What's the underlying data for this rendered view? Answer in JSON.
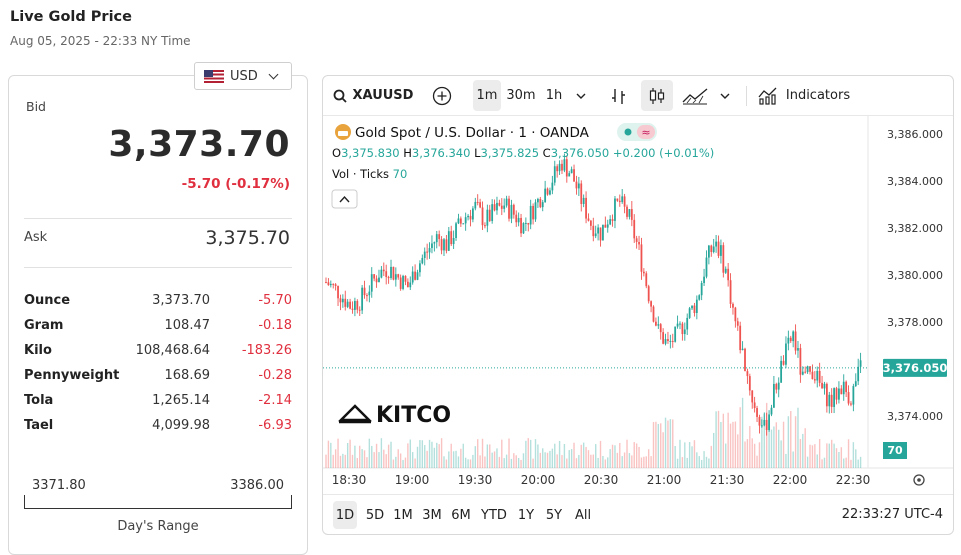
{
  "page": {
    "title": "Live Gold Price",
    "subtitle": "Aug 05, 2025 - 22:33 NY Time"
  },
  "currency": {
    "label": "USD",
    "icon": "us-flag-icon"
  },
  "bid": {
    "label": "Bid",
    "value": "3,373.70",
    "change": "-5.70 (-0.17%)"
  },
  "ask": {
    "label": "Ask",
    "value": "3,375.70"
  },
  "units": [
    {
      "name": "Ounce",
      "price": "3,373.70",
      "change": "-5.70"
    },
    {
      "name": "Gram",
      "price": "108.47",
      "change": "-0.18"
    },
    {
      "name": "Kilo",
      "price": "108,468.64",
      "change": "-183.26"
    },
    {
      "name": "Pennyweight",
      "price": "168.69",
      "change": "-0.28"
    },
    {
      "name": "Tola",
      "price": "1,265.14",
      "change": "-2.14"
    },
    {
      "name": "Tael",
      "price": "4,099.98",
      "change": "-6.93"
    }
  ],
  "day_range": {
    "low": "3371.80",
    "high": "3386.00",
    "label": "Day's Range"
  },
  "toolbar": {
    "symbol": "XAUUSD",
    "intervals": [
      "1m",
      "30m",
      "1h"
    ],
    "active_interval": "1m",
    "indicators_label": "Indicators"
  },
  "chart": {
    "title": "Gold Spot / U.S. Dollar · 1 · OANDA",
    "ohlc": {
      "o_label": "O",
      "o": "3,375.830",
      "h_label": "H",
      "h": "3,376.340",
      "l_label": "L",
      "l": "3,375.825",
      "c_label": "C",
      "c": "3,376.050",
      "change": "+0.200 (+0.01%)"
    },
    "vol_label": "Vol · Ticks",
    "vol_value": "70",
    "watermark": "KITCO",
    "last_price_tag": "3,376.050",
    "volume_tag": "70",
    "colors": {
      "up": "#26a69a",
      "down": "#ef5350",
      "tag": "#26a69a"
    }
  },
  "chart_data": {
    "type": "candlestick",
    "y_ticks": [
      "3,386.000",
      "3,384.000",
      "3,382.000",
      "3,380.000",
      "3,378.000",
      "3,374.000"
    ],
    "ylim": [
      3372.2,
      3387.1
    ],
    "x_ticks": [
      "18:30",
      "19:00",
      "19:30",
      "20:00",
      "20:30",
      "21:00",
      "21:30",
      "22:00",
      "22:30"
    ],
    "close_path": [
      [
        0,
        3379.7
      ],
      [
        5,
        3379.3
      ],
      [
        10,
        3378.7
      ],
      [
        14,
        3378.9
      ],
      [
        18,
        3379.5
      ],
      [
        22,
        3380.1
      ],
      [
        26,
        3380.3
      ],
      [
        30,
        3379.9
      ],
      [
        34,
        3379.5
      ],
      [
        38,
        3380.4
      ],
      [
        42,
        3381.0
      ],
      [
        46,
        3381.6
      ],
      [
        50,
        3381.3
      ],
      [
        54,
        3381.9
      ],
      [
        58,
        3382.5
      ],
      [
        62,
        3382.9
      ],
      [
        66,
        3382.3
      ],
      [
        70,
        3382.7
      ],
      [
        74,
        3383.0
      ],
      [
        78,
        3382.6
      ],
      [
        82,
        3382.1
      ],
      [
        86,
        3382.8
      ],
      [
        90,
        3383.5
      ],
      [
        94,
        3384.1
      ],
      [
        98,
        3384.8
      ],
      [
        102,
        3384.3
      ],
      [
        106,
        3383.2
      ],
      [
        110,
        3382.2
      ],
      [
        114,
        3381.8
      ],
      [
        118,
        3382.6
      ],
      [
        122,
        3383.1
      ],
      [
        126,
        3382.4
      ],
      [
        130,
        3381.0
      ],
      [
        134,
        3379.2
      ],
      [
        138,
        3377.6
      ],
      [
        142,
        3377.0
      ],
      [
        146,
        3377.5
      ],
      [
        150,
        3378.2
      ],
      [
        154,
        3378.9
      ],
      [
        158,
        3380.6
      ],
      [
        162,
        3381.5
      ],
      [
        166,
        3380.2
      ],
      [
        170,
        3378.0
      ],
      [
        174,
        3376.2
      ],
      [
        178,
        3374.3
      ],
      [
        182,
        3373.4
      ],
      [
        186,
        3375.0
      ],
      [
        190,
        3376.4
      ],
      [
        194,
        3377.5
      ],
      [
        198,
        3375.5
      ],
      [
        202,
        3376.0
      ],
      [
        206,
        3375.1
      ],
      [
        210,
        3374.6
      ],
      [
        214,
        3375.3
      ],
      [
        218,
        3374.8
      ],
      [
        222,
        3376.05
      ]
    ],
    "volume_hint": "tick volume bars along bottom"
  },
  "ranges": [
    "1D",
    "5D",
    "1M",
    "3M",
    "6M",
    "YTD",
    "1Y",
    "5Y",
    "All"
  ],
  "active_range": "1D",
  "clock": "22:33:27 UTC-4"
}
